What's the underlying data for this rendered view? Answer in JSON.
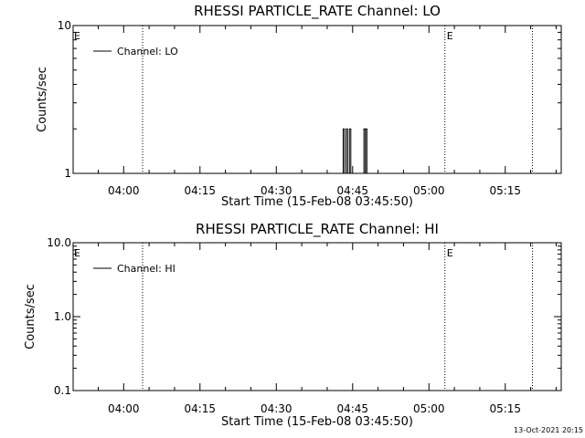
{
  "colors": {
    "background": "#ffffff",
    "foreground": "#000000"
  },
  "footer": {
    "timestamp": "13-Oct-2021 20:15"
  },
  "chart_data": [
    {
      "type": "line",
      "title": "RHESSI PARTICLE_RATE Channel: LO",
      "xlabel": "Start Time (15-Feb-08 03:45:50)",
      "ylabel": "Counts/sec",
      "yscale": "log",
      "ylim": [
        1,
        10
      ],
      "ytick_labels": [
        "1",
        "10"
      ],
      "xlim": [
        "03:50:04",
        "05:26:00"
      ],
      "xtick_labels": [
        "04:00",
        "04:15",
        "04:30",
        "04:45",
        "05:00",
        "05:15"
      ],
      "grid": false,
      "legend": {
        "position": "top-left",
        "entries": [
          "Channel: LO"
        ]
      },
      "vertical_markers": [
        {
          "time": "04:03:43",
          "label": ""
        },
        {
          "time": "05:03:08",
          "label": ""
        },
        {
          "time": "05:20:20",
          "label": ""
        }
      ],
      "edge_labels": [
        "E",
        "E"
      ],
      "series": [
        {
          "name": "Channel: LO",
          "x": [
            "04:42:48",
            "04:43:08",
            "04:43:26",
            "04:43:45",
            "04:44:04",
            "04:44:23",
            "04:44:45",
            "04:46:55",
            "04:47:13",
            "04:47:32",
            "04:47:51"
          ],
          "y": [
            1,
            2,
            1,
            2,
            1,
            2,
            1,
            1,
            2,
            2,
            1
          ]
        }
      ]
    },
    {
      "type": "line",
      "title": "RHESSI PARTICLE_RATE Channel: HI",
      "xlabel": "Start Time (15-Feb-08 03:45:50)",
      "ylabel": "Counts/sec",
      "yscale": "log",
      "ylim": [
        0.1,
        10
      ],
      "ytick_labels": [
        "0.1",
        "1.0",
        "10.0"
      ],
      "xlim": [
        "03:50:04",
        "05:26:00"
      ],
      "xtick_labels": [
        "04:00",
        "04:15",
        "04:30",
        "04:45",
        "05:00",
        "05:15"
      ],
      "grid": false,
      "legend": {
        "position": "top-left",
        "entries": [
          "Channel: HI"
        ]
      },
      "vertical_markers": [
        {
          "time": "04:03:43",
          "label": ""
        },
        {
          "time": "05:03:08",
          "label": ""
        },
        {
          "time": "05:20:20",
          "label": ""
        }
      ],
      "edge_labels": [
        "E",
        "E"
      ],
      "series": [
        {
          "name": "Channel: HI",
          "x": [],
          "y": []
        }
      ]
    }
  ]
}
